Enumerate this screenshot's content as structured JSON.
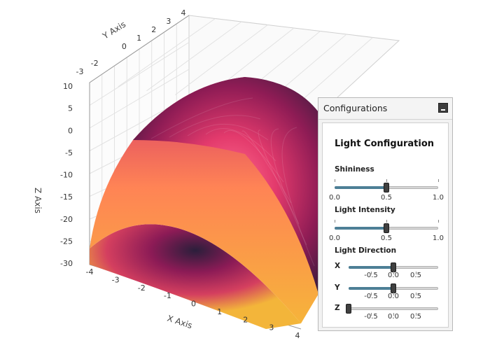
{
  "chart_data": {
    "type": "surface3d",
    "x_axis": {
      "title": "X Axis",
      "ticks": [
        -4,
        -3,
        -2,
        -1,
        0,
        1,
        2,
        3,
        4
      ]
    },
    "y_axis": {
      "title": "Y Axis",
      "ticks": [
        -3,
        -2,
        0,
        1,
        2,
        3,
        4
      ]
    },
    "z_axis": {
      "title": "Z Axis",
      "ticks": [
        10,
        5,
        0,
        -5,
        -10,
        -15,
        -20,
        -25,
        -30
      ],
      "range": [
        -30,
        10
      ]
    },
    "surface": "z = 10 - x^2 - y^2",
    "grid": true,
    "colors": [
      "#2a1e3c",
      "#8a1a55",
      "#e6336f",
      "#ff7a59",
      "#f6a623",
      "#f3c23a"
    ]
  },
  "config": {
    "title": "Configurations",
    "section_title": "Light Configuration",
    "shininess": {
      "label": "Shininess",
      "value": 0.5,
      "min_label": "0.0",
      "mid_label": "0.5",
      "max_label": "1.0"
    },
    "intensity": {
      "label": "Light Intensity",
      "value": 0.5,
      "min_label": "0.0",
      "mid_label": "0.5",
      "max_label": "1.0"
    },
    "direction": {
      "label": "Light Direction",
      "x": {
        "label": "X",
        "value": 0.0
      },
      "y": {
        "label": "Y",
        "value": 0.0
      },
      "z": {
        "label": "Z",
        "value": -1.0
      },
      "tick_labels": [
        "-0.5",
        "0.0",
        "0.5"
      ]
    }
  }
}
